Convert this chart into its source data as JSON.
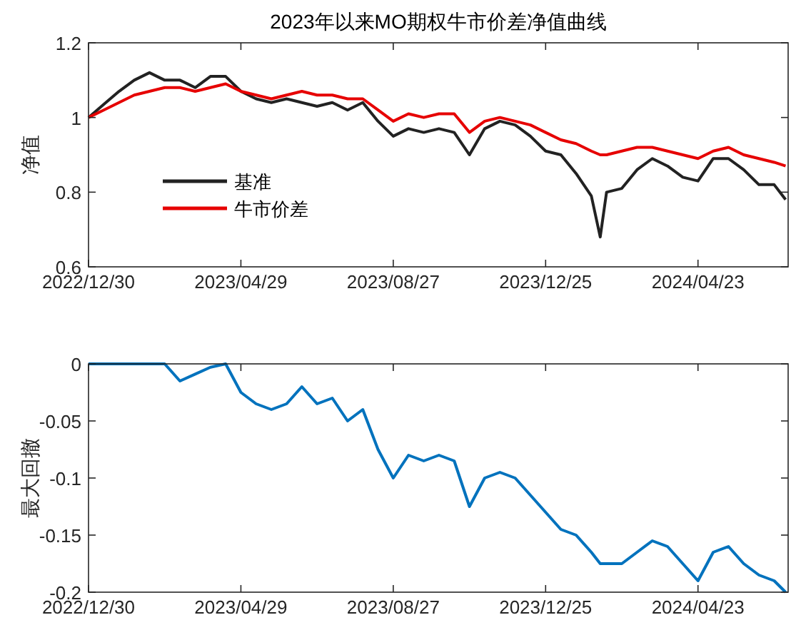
{
  "chart_data": [
    {
      "type": "line",
      "title": "2023年以来MO期权牛市价差净值曲线",
      "ylabel": "净值",
      "legend": "bottom left",
      "x": [
        "2022-12-30",
        "2023-01-11",
        "2023-01-23",
        "2023-02-04",
        "2023-02-16",
        "2023-02-28",
        "2023-03-12",
        "2023-03-24",
        "2023-04-05",
        "2023-04-17",
        "2023-04-29",
        "2023-05-11",
        "2023-05-23",
        "2023-06-04",
        "2023-06-16",
        "2023-06-28",
        "2023-07-10",
        "2023-07-22",
        "2023-08-03",
        "2023-08-15",
        "2023-08-27",
        "2023-09-08",
        "2023-09-20",
        "2023-10-02",
        "2023-10-14",
        "2023-10-26",
        "2023-11-07",
        "2023-11-19",
        "2023-12-01",
        "2023-12-13",
        "2023-12-25",
        "2024-01-06",
        "2024-01-18",
        "2024-01-30",
        "2024-02-06",
        "2024-02-11",
        "2024-02-23",
        "2024-03-06",
        "2024-03-18",
        "2024-03-30",
        "2024-04-11",
        "2024-04-23",
        "2024-05-05",
        "2024-05-17",
        "2024-05-29",
        "2024-06-10",
        "2024-06-22",
        "2024-07-01"
      ],
      "series": [
        {
          "name": "基准",
          "color": "#222222",
          "values": [
            1.0,
            1.035,
            1.07,
            1.1,
            1.12,
            1.1,
            1.1,
            1.08,
            1.11,
            1.11,
            1.07,
            1.05,
            1.04,
            1.05,
            1.04,
            1.03,
            1.04,
            1.02,
            1.04,
            0.99,
            0.95,
            0.97,
            0.96,
            0.97,
            0.96,
            0.9,
            0.97,
            0.99,
            0.98,
            0.95,
            0.91,
            0.9,
            0.85,
            0.79,
            0.68,
            0.8,
            0.81,
            0.86,
            0.89,
            0.87,
            0.84,
            0.83,
            0.89,
            0.89,
            0.86,
            0.82,
            0.82,
            0.78
          ]
        },
        {
          "name": "牛市价差",
          "color": "#e60000",
          "values": [
            1.0,
            1.02,
            1.04,
            1.06,
            1.07,
            1.08,
            1.08,
            1.07,
            1.08,
            1.09,
            1.07,
            1.06,
            1.05,
            1.06,
            1.07,
            1.06,
            1.06,
            1.05,
            1.05,
            1.02,
            0.99,
            1.01,
            1.0,
            1.01,
            1.01,
            0.96,
            0.99,
            1.0,
            0.99,
            0.98,
            0.96,
            0.94,
            0.93,
            0.91,
            0.9,
            0.9,
            0.91,
            0.92,
            0.92,
            0.91,
            0.9,
            0.89,
            0.91,
            0.92,
            0.9,
            0.89,
            0.88,
            0.87
          ]
        }
      ],
      "xlim": [
        "2022-12-30",
        "2024-07-03"
      ],
      "xticks": [
        {
          "value": "2022-12-30",
          "label": "2022/12/30"
        },
        {
          "value": "2023-04-29",
          "label": "2023/04/29"
        },
        {
          "value": "2023-08-27",
          "label": "2023/08/27"
        },
        {
          "value": "2023-12-25",
          "label": "2023/12/25"
        },
        {
          "value": "2024-04-23",
          "label": "2024/04/23"
        }
      ],
      "ylim": [
        0.6,
        1.2
      ],
      "yticks": [
        0.6,
        0.8,
        1,
        1.2
      ]
    },
    {
      "type": "line",
      "ylabel": "最大回撤",
      "x": [
        "2022-12-30",
        "2023-01-11",
        "2023-01-23",
        "2023-02-04",
        "2023-02-16",
        "2023-02-28",
        "2023-03-12",
        "2023-03-24",
        "2023-04-05",
        "2023-04-17",
        "2023-04-29",
        "2023-05-11",
        "2023-05-23",
        "2023-06-04",
        "2023-06-16",
        "2023-06-28",
        "2023-07-10",
        "2023-07-22",
        "2023-08-03",
        "2023-08-15",
        "2023-08-27",
        "2023-09-08",
        "2023-09-20",
        "2023-10-02",
        "2023-10-14",
        "2023-10-26",
        "2023-11-07",
        "2023-11-19",
        "2023-12-01",
        "2023-12-13",
        "2023-12-25",
        "2024-01-06",
        "2024-01-18",
        "2024-01-30",
        "2024-02-06",
        "2024-02-11",
        "2024-02-23",
        "2024-03-06",
        "2024-03-18",
        "2024-03-30",
        "2024-04-11",
        "2024-04-23",
        "2024-05-05",
        "2024-05-17",
        "2024-05-29",
        "2024-06-10",
        "2024-06-22",
        "2024-07-01"
      ],
      "series": [
        {
          "color": "#0072bd",
          "values": [
            0,
            0,
            0,
            0,
            0,
            0,
            -0.015,
            -0.009,
            -0.003,
            0,
            -0.025,
            -0.035,
            -0.04,
            -0.035,
            -0.02,
            -0.035,
            -0.03,
            -0.05,
            -0.04,
            -0.075,
            -0.1,
            -0.08,
            -0.085,
            -0.08,
            -0.085,
            -0.125,
            -0.1,
            -0.095,
            -0.1,
            -0.115,
            -0.13,
            -0.145,
            -0.15,
            -0.165,
            -0.175,
            -0.175,
            -0.175,
            -0.165,
            -0.155,
            -0.16,
            -0.175,
            -0.19,
            -0.165,
            -0.16,
            -0.175,
            -0.185,
            -0.19,
            -0.2
          ]
        }
      ],
      "xlim": [
        "2022-12-30",
        "2024-07-03"
      ],
      "xticks": [
        {
          "value": "2022-12-30",
          "label": "2022/12/30"
        },
        {
          "value": "2023-04-29",
          "label": "2023/04/29"
        },
        {
          "value": "2023-08-27",
          "label": "2023/08/27"
        },
        {
          "value": "2023-12-25",
          "label": "2023/12/25"
        },
        {
          "value": "2024-04-23",
          "label": "2024/04/23"
        }
      ],
      "ylim": [
        -0.2,
        0
      ],
      "yticks": [
        -0.2,
        -0.15,
        -0.1,
        -0.05,
        0
      ]
    }
  ]
}
